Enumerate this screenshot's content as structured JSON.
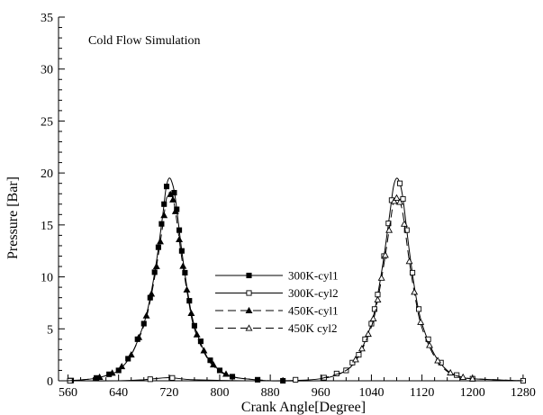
{
  "chart_data": {
    "type": "line",
    "title": "",
    "annotation": "Cold Flow Simulation",
    "xlabel": "Crank Angle[Degree]",
    "ylabel": "Pressure [Bar]",
    "xlim": [
      545,
      1283
    ],
    "ylim": [
      0,
      35
    ],
    "xticks": [
      560,
      640,
      720,
      800,
      880,
      960,
      1040,
      1120,
      1200,
      1280
    ],
    "yticks": [
      0,
      5,
      10,
      15,
      20,
      25,
      30,
      35
    ],
    "grid": false,
    "legend_position": "center",
    "series": [
      {
        "name": "300K-cyl1",
        "marker": "square-filled",
        "dash": "solid",
        "color": "#000000",
        "x": [
          560,
          600,
          620,
          640,
          660,
          680,
          690,
          700,
          710,
          715,
          720,
          725,
          730,
          740,
          750,
          760,
          780,
          800,
          820,
          840,
          880,
          960,
          1040,
          1120,
          1200,
          1280
        ],
        "y": [
          0.0,
          0.2,
          0.5,
          1.0,
          2.5,
          5.5,
          8.0,
          11.5,
          16.0,
          18.5,
          19.5,
          19.0,
          17.5,
          12.5,
          8.3,
          5.3,
          2.3,
          1.0,
          0.4,
          0.2,
          0.0,
          0.0,
          0.0,
          0.0,
          0.0,
          0.0
        ],
        "marker_x": [
          565,
          605,
          625,
          640,
          655,
          670,
          680,
          690,
          697,
          703,
          708,
          712,
          716,
          728,
          732,
          736,
          740,
          745,
          752,
          760,
          770,
          785,
          800,
          820,
          860,
          900
        ]
      },
      {
        "name": "300K-cyl2",
        "marker": "square-open",
        "dash": "solid",
        "color": "#000000",
        "x": [
          560,
          640,
          680,
          720,
          760,
          880,
          960,
          1000,
          1020,
          1040,
          1050,
          1060,
          1070,
          1075,
          1080,
          1085,
          1090,
          1100,
          1110,
          1120,
          1140,
          1160,
          1180,
          1200,
          1280
        ],
        "y": [
          0.0,
          0.0,
          0.1,
          0.3,
          0.1,
          0.0,
          0.2,
          1.0,
          2.5,
          5.5,
          8.3,
          12.0,
          16.5,
          18.7,
          19.5,
          19.0,
          17.5,
          12.5,
          8.3,
          5.5,
          2.5,
          1.0,
          0.4,
          0.2,
          0.0
        ],
        "marker_x": [
          563,
          690,
          725,
          920,
          965,
          985,
          1000,
          1010,
          1020,
          1030,
          1040,
          1045,
          1050,
          1060,
          1067,
          1072,
          1085,
          1090,
          1096,
          1105,
          1115,
          1130,
          1150,
          1175,
          1200,
          1280
        ]
      },
      {
        "name": "450K-cyl1",
        "marker": "triangle-filled",
        "dash": "dashed",
        "color": "#000000",
        "x": [
          560,
          600,
          620,
          640,
          660,
          680,
          690,
          700,
          710,
          715,
          720,
          725,
          730,
          740,
          750,
          760,
          780,
          800,
          820,
          840,
          880
        ],
        "y": [
          0.0,
          0.2,
          0.5,
          1.0,
          2.5,
          5.3,
          7.7,
          11.0,
          15.0,
          17.3,
          18.1,
          17.7,
          16.3,
          11.8,
          8.0,
          5.0,
          2.2,
          0.9,
          0.4,
          0.2,
          0.0
        ],
        "marker_x": [
          610,
          630,
          645,
          660,
          672,
          684,
          692,
          700,
          706,
          712,
          722,
          726,
          730,
          736,
          742,
          748,
          755,
          764,
          775,
          790,
          810
        ]
      },
      {
        "name": "450K cyl2",
        "marker": "triangle-open",
        "dash": "dashed",
        "color": "#000000",
        "x": [
          960,
          1000,
          1020,
          1040,
          1050,
          1060,
          1070,
          1075,
          1080,
          1085,
          1090,
          1100,
          1110,
          1120,
          1140,
          1160,
          1180,
          1200,
          1280
        ],
        "y": [
          0.2,
          1.0,
          2.4,
          5.2,
          7.8,
          11.3,
          15.3,
          17.2,
          17.6,
          17.2,
          16.0,
          11.5,
          7.8,
          5.1,
          2.3,
          0.9,
          0.4,
          0.2,
          0.0
        ],
        "marker_x": [
          1015,
          1025,
          1035,
          1043,
          1050,
          1056,
          1062,
          1068,
          1076,
          1080,
          1085,
          1092,
          1100,
          1108,
          1118,
          1132,
          1145,
          1165,
          1185,
          1200
        ]
      }
    ]
  }
}
